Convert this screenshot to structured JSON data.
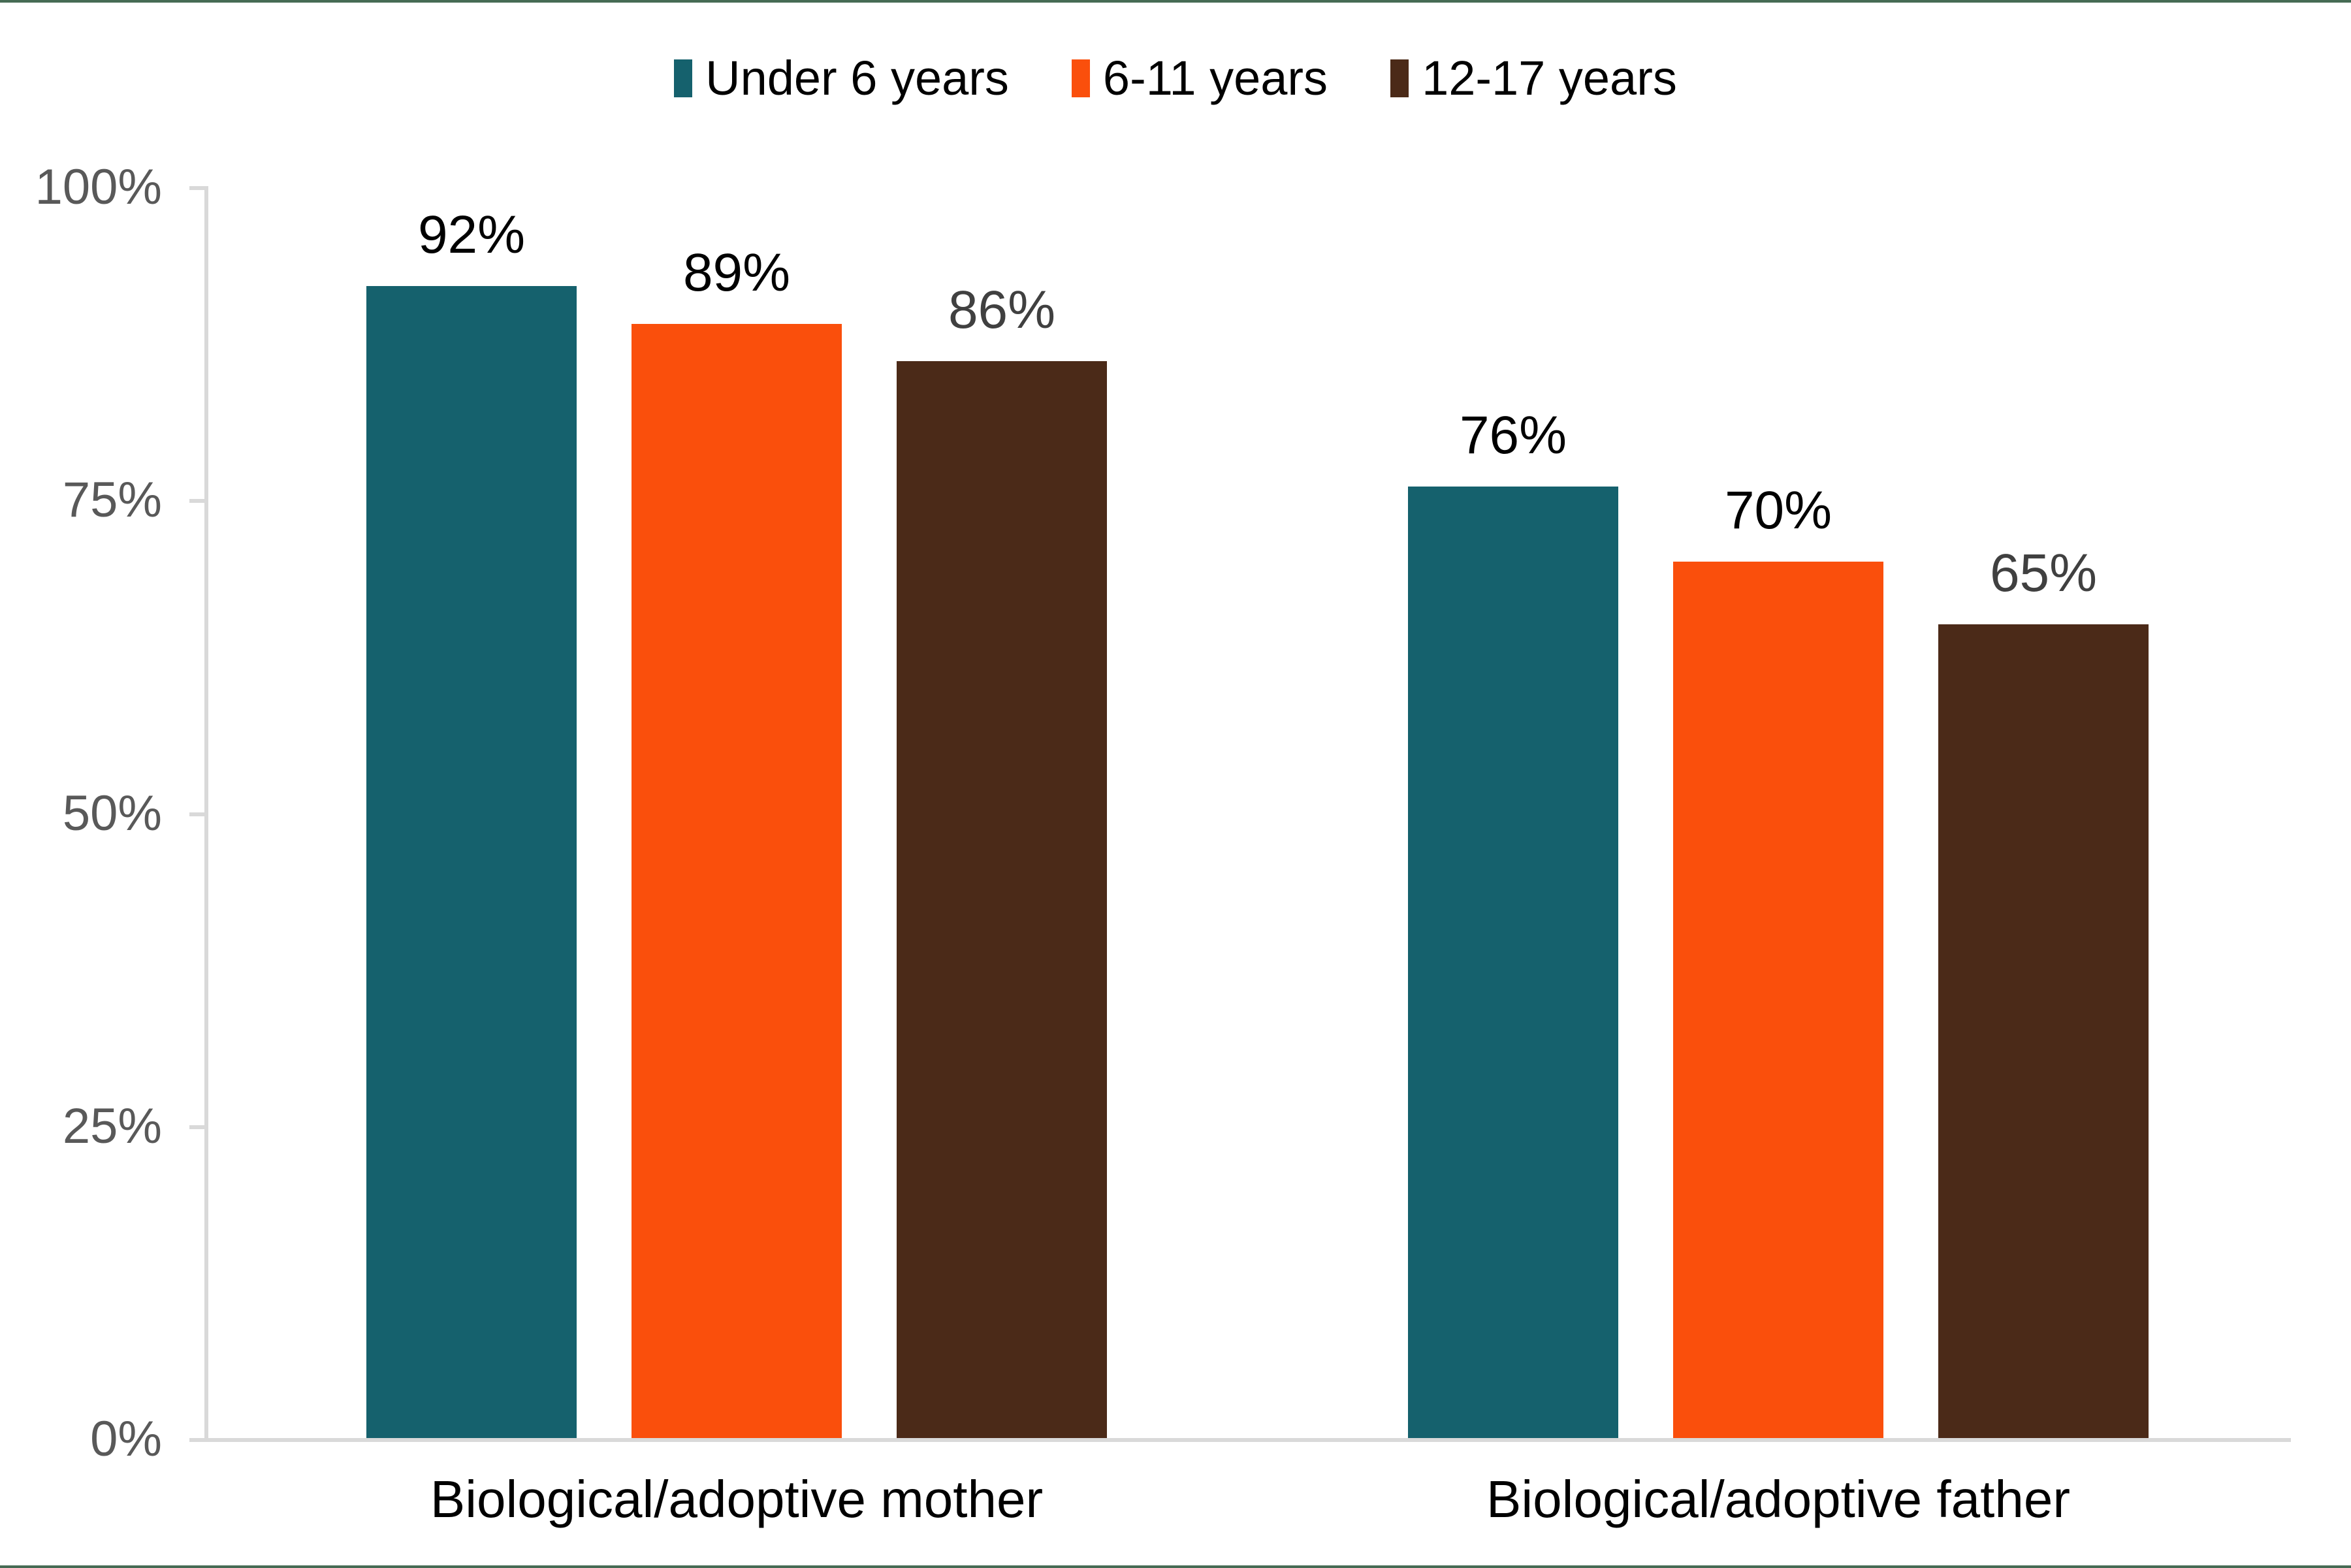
{
  "chart_data": {
    "type": "bar",
    "title": "",
    "xlabel": "",
    "ylabel": "",
    "categories": [
      "Biological/adoptive mother",
      "Biological/adoptive father"
    ],
    "series": [
      {
        "name": "Under 6 years",
        "color": "#15616D",
        "values": [
          92,
          76
        ],
        "labels": [
          "92%",
          "76%"
        ],
        "label_color": "#000000"
      },
      {
        "name": "6-11 years",
        "color": "#FA4F0C",
        "values": [
          89,
          70
        ],
        "labels": [
          "89%",
          "70%"
        ],
        "label_color": "#000000"
      },
      {
        "name": "12-17 years",
        "color": "#4B2A18",
        "values": [
          86,
          65
        ],
        "labels": [
          "86%",
          "65%"
        ],
        "label_color": "#404040"
      }
    ],
    "y_axis": {
      "range": [
        0,
        100
      ],
      "ticks": [
        {
          "value": 100,
          "label": "100%"
        },
        {
          "value": 75,
          "label": "75%"
        },
        {
          "value": 50,
          "label": "50%"
        },
        {
          "value": 25,
          "label": "25%"
        },
        {
          "value": 0,
          "label": "0%"
        }
      ]
    },
    "legend_position": "top",
    "grid": false,
    "styles": {
      "background": "#FFFFFF",
      "axis_color": "#D9D9D9",
      "tick_label_color": "#595959",
      "accent_rule_color": "#466B54"
    }
  }
}
